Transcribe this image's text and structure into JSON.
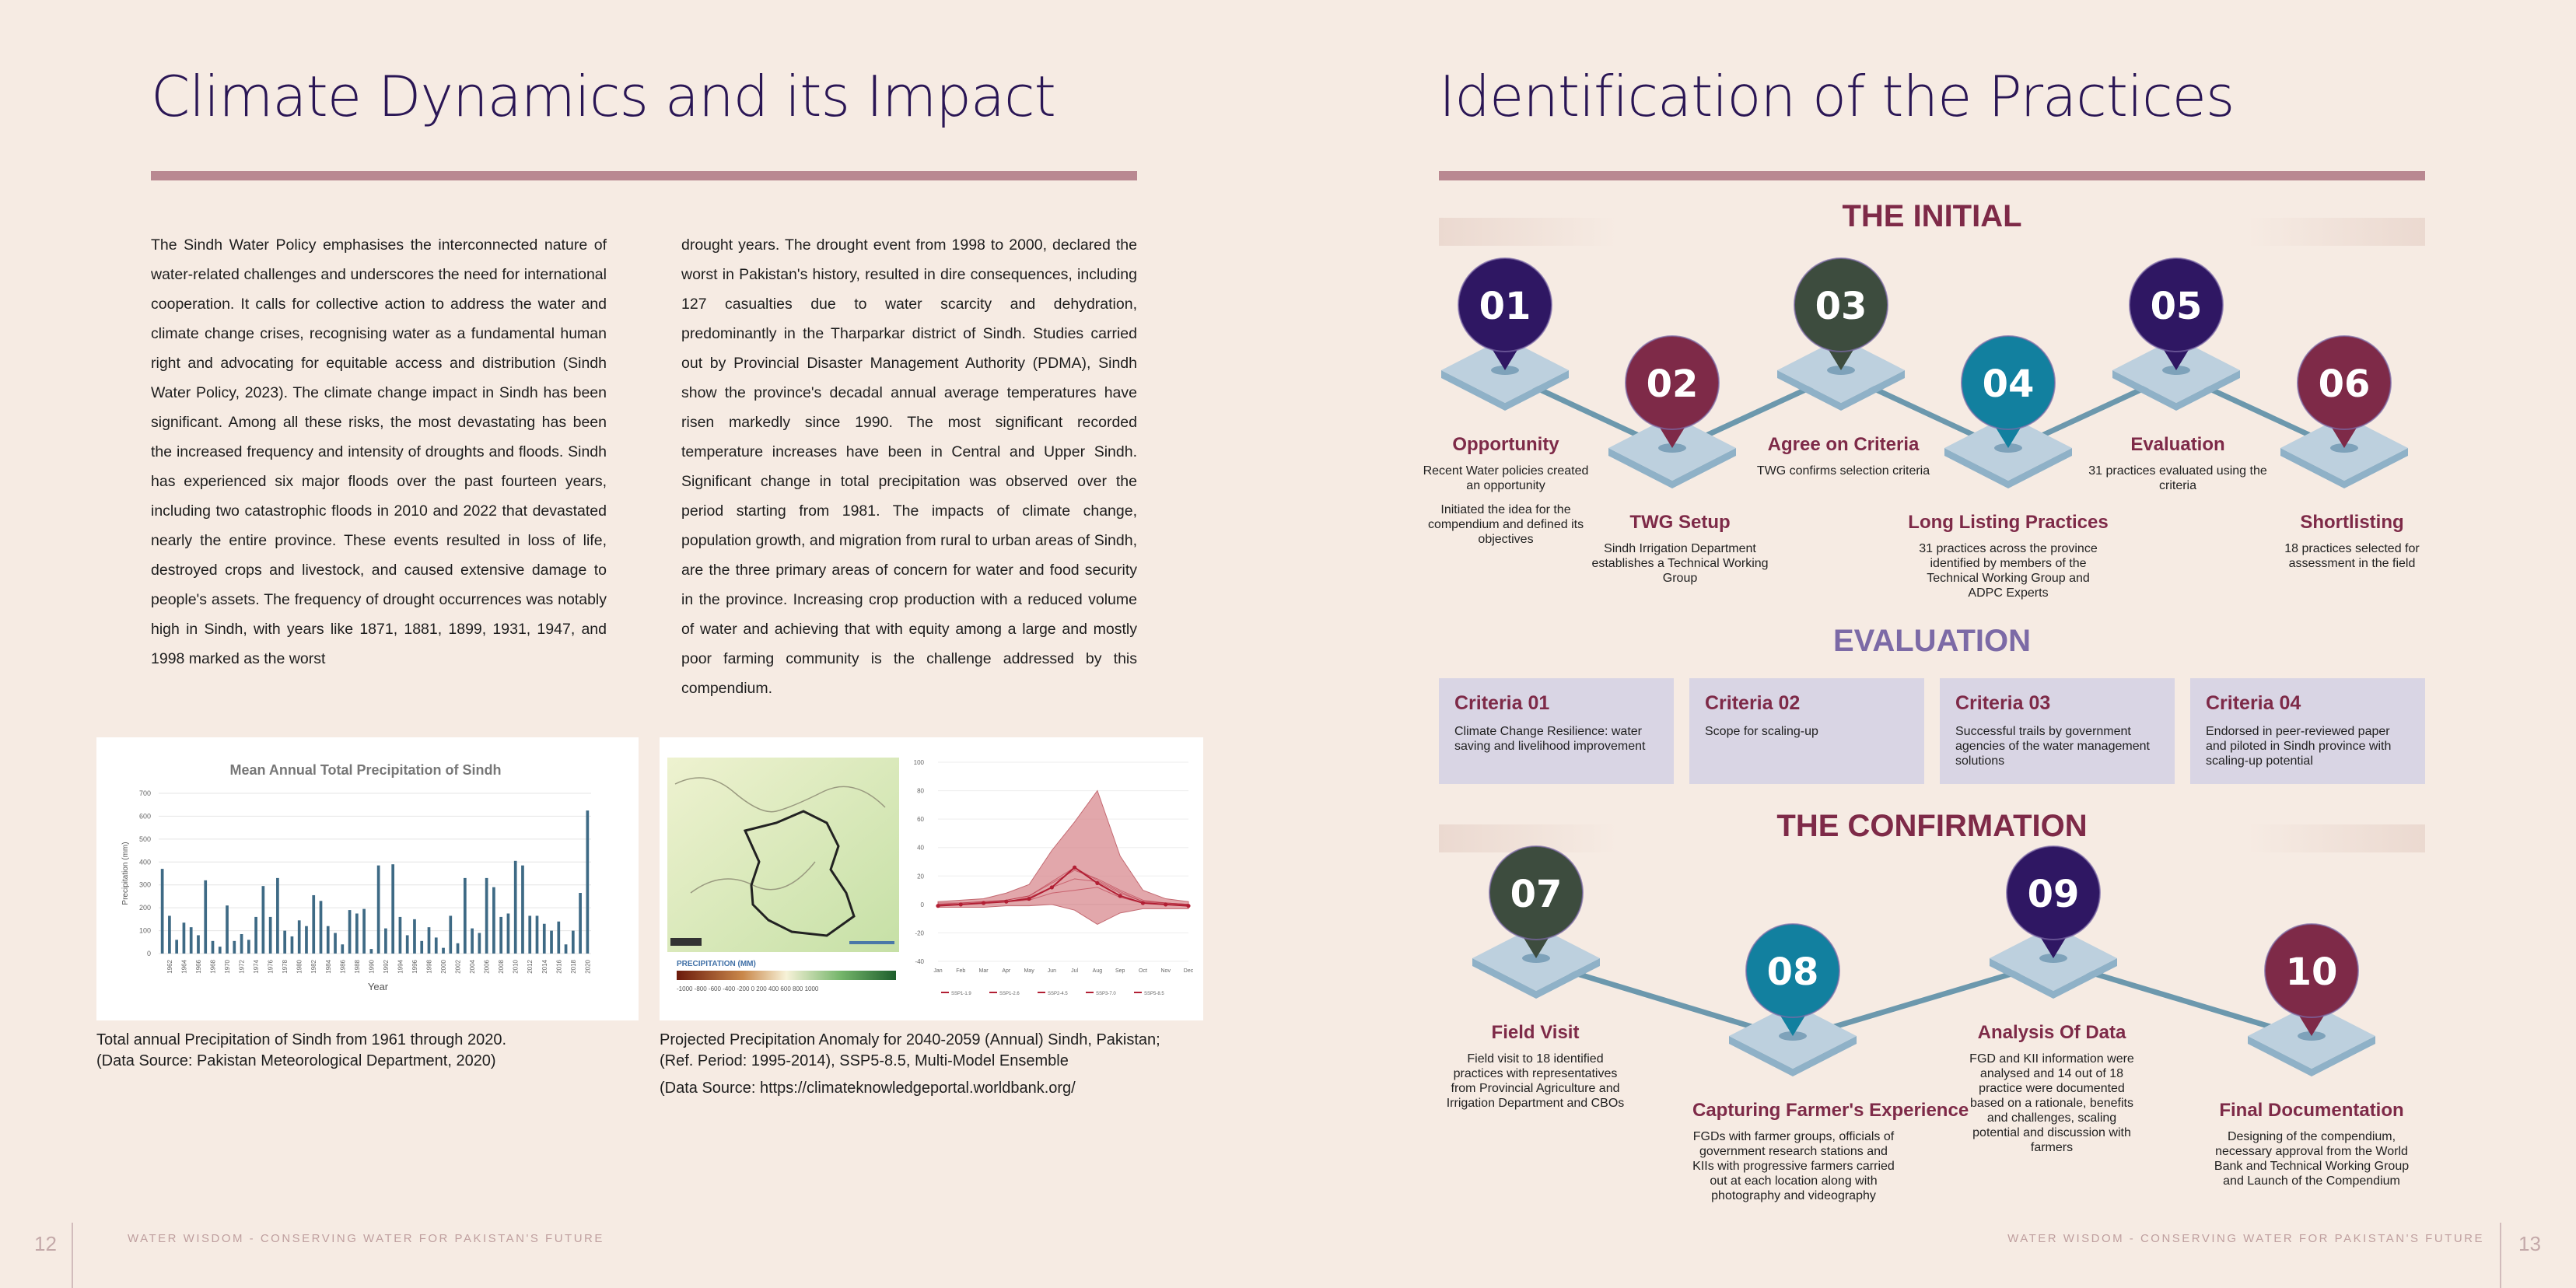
{
  "left_page": {
    "title": "Climate Dynamics and its Impact",
    "column1": "The Sindh Water Policy emphasises the interconnected nature of water-related challenges and underscores the need for international cooperation. It calls for collective action to address the water and climate change crises, recognising water as a fundamental human right and advocating for equitable access and distribution (Sindh Water Policy, 2023). The climate change impact in Sindh has been significant. Among all these risks, the most devastating has been the increased frequency and intensity of droughts and floods. Sindh has experienced six major floods over the past fourteen years, including two catastrophic floods in 2010 and 2022 that devastated nearly the entire province. These events resulted in loss of life, destroyed crops and livestock, and caused extensive damage to people's assets. The frequency of drought occurrences was notably high in Sindh, with years like 1871, 1881, 1899, 1931, 1947, and 1998 marked as the worst",
    "column2": "drought years. The drought event from 1998 to 2000, declared the worst in Pakistan's history, resulted in dire consequences, including 127 casualties due to water scarcity and dehydration, predominantly in the Tharparkar district of Sindh. Studies carried out by Provincial Disaster Management Authority (PDMA), Sindh show the province's decadal annual average temperatures have risen markedly since 1990. The most significant recorded temperature increases have been in Central and Upper Sindh. Significant change in total precipitation was observed over the period starting from 1981. The impacts of climate change, population growth, and migration from rural to urban areas of Sindh, are the three primary areas of concern for water and food security in the province. Increasing crop production with a reduced volume of water and achieving that with equity among a large and mostly poor farming community is the challenge addressed by this compendium.",
    "caption1_line1": "Total annual Precipitation of Sindh from 1961 through 2020.",
    "caption1_line2": "(Data Source: Pakistan Meteorological Department, 2020)",
    "caption2_line1": "Projected Precipitation Anomaly for 2040-2059 (Annual) Sindh, Pakistan;",
    "caption2_line2": "(Ref. Period: 1995-2014), SSP5-8.5, Multi-Model Ensemble",
    "caption2_line3": "(Data Source: https://climateknowledgeportal.worldbank.org/",
    "map_legend_title": "PRECIPITATION (MM)",
    "map_legend_ticks": "-1000 -800 -600 -400 -200 0 200 400 600 800 1000",
    "page_number": "12",
    "footer": "WATER WISDOM - CONSERVING WATER FOR PAKISTAN'S FUTURE"
  },
  "right_page": {
    "title": "Identification of the Practices",
    "section_initial": "THE INITIAL",
    "section_evaluation": "EVALUATION",
    "section_confirmation": "THE CONFIRMATION",
    "steps": [
      {
        "num": "01",
        "label": "Opportunity",
        "desc1": "Recent Water policies created an opportunity",
        "desc2": "Initiated the idea for the compendium and defined its objectives",
        "color": "#2f1763"
      },
      {
        "num": "02",
        "label": "TWG Setup",
        "desc1": "Sindh Irrigation Department establishes a Technical Working Group",
        "color": "#7e2a48"
      },
      {
        "num": "03",
        "label": "Agree on Criteria",
        "desc1": "TWG confirms selection criteria",
        "color": "#3d4c3e"
      },
      {
        "num": "04",
        "label": "Long Listing Practices",
        "desc1": "31 practices across the province identified by members of the Technical Working Group and ADPC Experts",
        "color": "#12809f"
      },
      {
        "num": "05",
        "label": "Evaluation",
        "desc1": "31 practices evaluated using the criteria",
        "color": "#2f1763"
      },
      {
        "num": "06",
        "label": "Shortlisting",
        "desc1": "18 practices selected for assessment in the field",
        "color": "#7e2a48"
      },
      {
        "num": "07",
        "label": "Field Visit",
        "desc1": "Field visit to 18 identified practices with representatives from Provincial Agriculture and Irrigation Department and CBOs",
        "color": "#3d4c3e"
      },
      {
        "num": "08",
        "label": "Capturing Farmer's Experience",
        "desc1": "FGDs with farmer groups, officials of government research stations and KIIs with progressive farmers carried out at each location along with photography and videography",
        "color": "#12809f"
      },
      {
        "num": "09",
        "label": "Analysis Of Data",
        "desc1": "FGD and KII information were analysed and 14 out of 18 practice were documented based on a rationale, benefits and challenges, scaling potential and discussion with farmers",
        "color": "#2f1763"
      },
      {
        "num": "10",
        "label": "Final Documentation",
        "desc1": "Designing of the compendium, necessary approval from the World Bank and Technical Working Group and Launch of the Compendium",
        "color": "#7e2a48"
      }
    ],
    "criteria": [
      {
        "title": "Criteria 01",
        "desc": "Climate Change Resilience: water saving and livelihood improvement"
      },
      {
        "title": "Criteria 02",
        "desc": "Scope for scaling-up"
      },
      {
        "title": "Criteria 03",
        "desc": "Successful trails by government agencies of the water management solutions"
      },
      {
        "title": "Criteria 04",
        "desc": "Endorsed in peer-reviewed paper and piloted in Sindh province with scaling-up potential"
      }
    ],
    "page_number": "13",
    "footer": "WATER WISDOM - CONSERVING WATER FOR PAKISTAN'S FUTURE"
  },
  "chart_data": [
    {
      "type": "bar",
      "title": "Mean Annual Total Precipitation of Sindh",
      "xlabel": "Year",
      "ylabel": "Precipitation (mm)",
      "ylim": [
        0,
        700
      ],
      "yticks": [
        0,
        100,
        200,
        300,
        400,
        500,
        600,
        700
      ],
      "xticks": [
        "1962",
        "1964",
        "1966",
        "1968",
        "1970",
        "1972",
        "1974",
        "1976",
        "1978",
        "1980",
        "1982",
        "1984",
        "1986",
        "1988",
        "1990",
        "1992",
        "1994",
        "1996",
        "1998",
        "2000",
        "2002",
        "2004",
        "2006",
        "2008",
        "2010",
        "2012",
        "2014",
        "2016",
        "2018",
        "2020"
      ],
      "categories": [
        "1961",
        "1962",
        "1963",
        "1964",
        "1965",
        "1966",
        "1967",
        "1968",
        "1969",
        "1970",
        "1971",
        "1972",
        "1973",
        "1974",
        "1975",
        "1976",
        "1977",
        "1978",
        "1979",
        "1980",
        "1981",
        "1982",
        "1983",
        "1984",
        "1985",
        "1986",
        "1987",
        "1988",
        "1989",
        "1990",
        "1991",
        "1992",
        "1993",
        "1994",
        "1995",
        "1996",
        "1997",
        "1998",
        "1999",
        "2000",
        "2001",
        "2002",
        "2003",
        "2004",
        "2005",
        "2006",
        "2007",
        "2008",
        "2009",
        "2010",
        "2011",
        "2012",
        "2013",
        "2014",
        "2015",
        "2016",
        "2017",
        "2018",
        "2019",
        "2020"
      ],
      "values": [
        370,
        165,
        60,
        135,
        115,
        80,
        320,
        55,
        30,
        210,
        55,
        85,
        60,
        160,
        295,
        160,
        330,
        100,
        75,
        145,
        120,
        255,
        230,
        120,
        90,
        40,
        190,
        175,
        195,
        20,
        385,
        110,
        390,
        160,
        80,
        150,
        55,
        115,
        70,
        25,
        165,
        45,
        330,
        110,
        90,
        330,
        290,
        160,
        175,
        405,
        385,
        165,
        165,
        130,
        100,
        140,
        40,
        100,
        265,
        625
      ],
      "color": "#3e6a85"
    },
    {
      "type": "area",
      "categories": [
        "Jan",
        "Feb",
        "Mar",
        "Apr",
        "May",
        "Jun",
        "Jul",
        "Aug",
        "Sep",
        "Oct",
        "Nov",
        "Dec"
      ],
      "ylim": [
        -40,
        100
      ],
      "yticks": [
        -40,
        -20,
        0,
        20,
        40,
        60,
        80,
        100
      ],
      "series": [
        {
          "name": "SSP1-1.9",
          "values": [
            0,
            0,
            1,
            2,
            3,
            8,
            10,
            12,
            5,
            1,
            0,
            0
          ]
        },
        {
          "name": "SSP1-2.6",
          "values": [
            0,
            0,
            1,
            2,
            5,
            12,
            18,
            16,
            8,
            2,
            1,
            0
          ]
        },
        {
          "name": "SSP2-4.5",
          "values": [
            1,
            1,
            2,
            3,
            6,
            15,
            24,
            18,
            10,
            3,
            1,
            0
          ]
        },
        {
          "name": "SSP3-7.0",
          "values": [
            0,
            1,
            2,
            3,
            6,
            16,
            26,
            17,
            9,
            2,
            1,
            0
          ]
        },
        {
          "name": "SSP5-8.5",
          "values": [
            -1,
            0,
            1,
            2,
            4,
            12,
            26,
            15,
            6,
            1,
            0,
            -1
          ]
        }
      ],
      "band_upper": [
        2,
        3,
        4,
        8,
        14,
        38,
        58,
        80,
        34,
        10,
        4,
        2
      ],
      "band_lower": [
        -2,
        -2,
        -2,
        -1,
        -1,
        0,
        -4,
        -14,
        -6,
        -3,
        -3,
        -3
      ],
      "colors": {
        "band": "#d88a8f",
        "line": "#b21f34"
      }
    }
  ]
}
